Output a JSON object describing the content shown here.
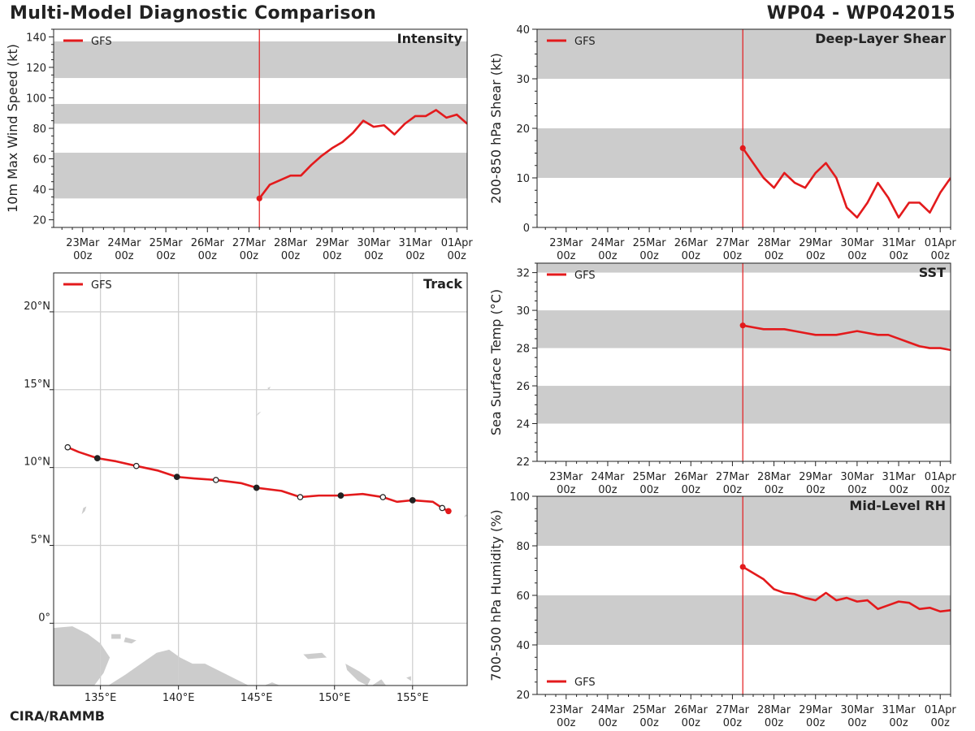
{
  "title": "Multi-Model Diagnostic Comparison",
  "storm_id": "WP04 - WP042015",
  "credit": "CIRA/RAMMB",
  "colors": {
    "series": "#e31a1c",
    "band": "#cccccc",
    "land": "#cccccc",
    "grid": "#d0d0d0",
    "frame": "#222222"
  },
  "chart_data": [
    {
      "id": "intensity",
      "type": "line",
      "title": "Intensity",
      "ylabel": "10m Max Wind Speed (kt)",
      "ylim": [
        15,
        145
      ],
      "yticks": [
        20,
        40,
        60,
        80,
        100,
        120,
        140
      ],
      "xlim": [
        -0.7,
        9.25
      ],
      "xticks": [
        {
          "value": 0,
          "label": "23Mar",
          "sub": "00z"
        },
        {
          "value": 1,
          "label": "24Mar",
          "sub": "00z"
        },
        {
          "value": 2,
          "label": "25Mar",
          "sub": "00z"
        },
        {
          "value": 3,
          "label": "26Mar",
          "sub": "00z"
        },
        {
          "value": 4,
          "label": "27Mar",
          "sub": "00z"
        },
        {
          "value": 5,
          "label": "28Mar",
          "sub": "00z"
        },
        {
          "value": 6,
          "label": "29Mar",
          "sub": "00z"
        },
        {
          "value": 7,
          "label": "30Mar",
          "sub": "00z"
        },
        {
          "value": 8,
          "label": "31Mar",
          "sub": "00z"
        },
        {
          "value": 9,
          "label": "01Apr",
          "sub": "00z"
        }
      ],
      "bands": [
        [
          34,
          64
        ],
        [
          83,
          96
        ],
        [
          113,
          137
        ]
      ],
      "init_x": 4.25,
      "legend": "GFS",
      "series": [
        {
          "name": "GFS",
          "x": [
            4.25,
            4.5,
            4.75,
            5.0,
            5.25,
            5.5,
            5.75,
            6.0,
            6.25,
            6.5,
            6.75,
            7.0,
            7.25,
            7.5,
            7.75,
            8.0,
            8.25,
            8.5,
            8.75,
            9.0,
            9.25
          ],
          "y": [
            34,
            43,
            46,
            49,
            49,
            56,
            62,
            67,
            71,
            77,
            85,
            81,
            82,
            76,
            83,
            88,
            88,
            92,
            87,
            89,
            83
          ]
        }
      ]
    },
    {
      "id": "shear",
      "type": "line",
      "title": "Deep-Layer Shear",
      "ylabel": "200-850 hPa Shear (kt)",
      "ylim": [
        0,
        40
      ],
      "yticks": [
        0,
        10,
        20,
        30,
        40
      ],
      "xlim": [
        -0.7,
        9.25
      ],
      "xticks": [
        {
          "value": 0,
          "label": "23Mar",
          "sub": "00z"
        },
        {
          "value": 1,
          "label": "24Mar",
          "sub": "00z"
        },
        {
          "value": 2,
          "label": "25Mar",
          "sub": "00z"
        },
        {
          "value": 3,
          "label": "26Mar",
          "sub": "00z"
        },
        {
          "value": 4,
          "label": "27Mar",
          "sub": "00z"
        },
        {
          "value": 5,
          "label": "28Mar",
          "sub": "00z"
        },
        {
          "value": 6,
          "label": "29Mar",
          "sub": "00z"
        },
        {
          "value": 7,
          "label": "30Mar",
          "sub": "00z"
        },
        {
          "value": 8,
          "label": "31Mar",
          "sub": "00z"
        },
        {
          "value": 9,
          "label": "01Apr",
          "sub": "00z"
        }
      ],
      "bands": [
        [
          10,
          20
        ],
        [
          30,
          40
        ]
      ],
      "init_x": 4.25,
      "legend": "GFS",
      "series": [
        {
          "name": "GFS",
          "x": [
            4.25,
            4.5,
            4.75,
            5.0,
            5.25,
            5.5,
            5.75,
            6.0,
            6.25,
            6.5,
            6.75,
            7.0,
            7.25,
            7.5,
            7.75,
            8.0,
            8.25,
            8.5,
            8.75,
            9.0,
            9.25
          ],
          "y": [
            16,
            13,
            10,
            8,
            11,
            9,
            8,
            11,
            13,
            10,
            4,
            2,
            5,
            9,
            6,
            2,
            5,
            5,
            3,
            7,
            10
          ]
        }
      ]
    },
    {
      "id": "sst",
      "type": "line",
      "title": "SST",
      "ylabel": "Sea Surface Temp (°C)",
      "ylim": [
        22,
        32.5
      ],
      "yticks": [
        22,
        24,
        26,
        28,
        30,
        32
      ],
      "xlim": [
        -0.7,
        9.25
      ],
      "xticks": [
        {
          "value": 0,
          "label": "23Mar",
          "sub": "00z"
        },
        {
          "value": 1,
          "label": "24Mar",
          "sub": "00z"
        },
        {
          "value": 2,
          "label": "25Mar",
          "sub": "00z"
        },
        {
          "value": 3,
          "label": "26Mar",
          "sub": "00z"
        },
        {
          "value": 4,
          "label": "27Mar",
          "sub": "00z"
        },
        {
          "value": 5,
          "label": "28Mar",
          "sub": "00z"
        },
        {
          "value": 6,
          "label": "29Mar",
          "sub": "00z"
        },
        {
          "value": 7,
          "label": "30Mar",
          "sub": "00z"
        },
        {
          "value": 8,
          "label": "31Mar",
          "sub": "00z"
        },
        {
          "value": 9,
          "label": "01Apr",
          "sub": "00z"
        }
      ],
      "bands": [
        [
          24,
          26
        ],
        [
          28,
          30
        ],
        [
          32,
          32.5
        ]
      ],
      "init_x": 4.25,
      "legend": "GFS",
      "series": [
        {
          "name": "GFS",
          "x": [
            4.25,
            4.5,
            4.75,
            5.0,
            5.25,
            5.5,
            5.75,
            6.0,
            6.25,
            6.5,
            6.75,
            7.0,
            7.25,
            7.5,
            7.75,
            8.0,
            8.25,
            8.5,
            8.75,
            9.0,
            9.25
          ],
          "y": [
            29.2,
            29.1,
            29.0,
            29.0,
            29.0,
            28.9,
            28.8,
            28.7,
            28.7,
            28.7,
            28.8,
            28.9,
            28.8,
            28.7,
            28.7,
            28.5,
            28.3,
            28.1,
            28.0,
            28.0,
            27.9
          ]
        }
      ]
    },
    {
      "id": "rh",
      "type": "line",
      "title": "Mid-Level RH",
      "ylabel": "700-500 hPa Humidity (%)",
      "ylim": [
        20,
        100
      ],
      "yticks": [
        20,
        40,
        60,
        80,
        100
      ],
      "xlim": [
        -0.7,
        9.25
      ],
      "xticks": [
        {
          "value": 0,
          "label": "23Mar",
          "sub": "00z"
        },
        {
          "value": 1,
          "label": "24Mar",
          "sub": "00z"
        },
        {
          "value": 2,
          "label": "25Mar",
          "sub": "00z"
        },
        {
          "value": 3,
          "label": "26Mar",
          "sub": "00z"
        },
        {
          "value": 4,
          "label": "27Mar",
          "sub": "00z"
        },
        {
          "value": 5,
          "label": "28Mar",
          "sub": "00z"
        },
        {
          "value": 6,
          "label": "29Mar",
          "sub": "00z"
        },
        {
          "value": 7,
          "label": "30Mar",
          "sub": "00z"
        },
        {
          "value": 8,
          "label": "31Mar",
          "sub": "00z"
        },
        {
          "value": 9,
          "label": "01Apr",
          "sub": "00z"
        }
      ],
      "bands": [
        [
          40,
          60
        ],
        [
          80,
          100
        ]
      ],
      "init_x": 4.25,
      "legend": "GFS",
      "series": [
        {
          "name": "GFS",
          "x": [
            4.25,
            4.5,
            4.75,
            5.0,
            5.25,
            5.5,
            5.75,
            6.0,
            6.25,
            6.5,
            6.75,
            7.0,
            7.25,
            7.5,
            7.75,
            8.0,
            8.25,
            8.5,
            8.75,
            9.0,
            9.25
          ],
          "y": [
            71.5,
            69,
            66.5,
            62.5,
            61,
            60.5,
            59,
            58,
            61,
            58,
            59,
            57.5,
            58,
            54.5,
            56,
            57.5,
            57,
            54.5,
            55,
            53.5,
            54
          ]
        }
      ]
    },
    {
      "id": "track",
      "type": "scatter",
      "title": "Track",
      "legend": "GFS",
      "xlim": [
        132,
        158.5
      ],
      "ylim": [
        -4,
        22.5
      ],
      "xticks": [
        {
          "value": 135,
          "label": "135°E"
        },
        {
          "value": 140,
          "label": "140°E"
        },
        {
          "value": 145,
          "label": "145°E"
        },
        {
          "value": 150,
          "label": "150°E"
        },
        {
          "value": 155,
          "label": "155°E"
        }
      ],
      "yticks": [
        {
          "value": 0,
          "label": "0°"
        },
        {
          "value": 5,
          "label": "5°N"
        },
        {
          "value": 10,
          "label": "10°N"
        },
        {
          "value": 15,
          "label": "15°N"
        },
        {
          "value": 20,
          "label": "20°N"
        }
      ],
      "series": [
        {
          "name": "GFS",
          "lon": [
            157.3,
            156.9,
            156.3,
            155.0,
            154.0,
            153.1,
            151.8,
            150.4,
            149.0,
            147.8,
            146.6,
            145.0,
            144.0,
            142.4,
            141.0,
            139.9,
            138.7,
            137.3,
            136.0,
            134.8,
            133.6,
            132.9
          ],
          "lat": [
            7.2,
            7.4,
            7.8,
            7.9,
            7.8,
            8.1,
            8.3,
            8.2,
            8.2,
            8.1,
            8.5,
            8.7,
            9.0,
            9.2,
            9.3,
            9.4,
            9.8,
            10.1,
            10.4,
            10.6,
            11.0,
            11.3
          ],
          "marker": [
            "init",
            "open",
            "none",
            "filled",
            "none",
            "open",
            "none",
            "filled",
            "none",
            "open",
            "none",
            "filled",
            "none",
            "open",
            "none",
            "filled",
            "none",
            "open",
            "none",
            "filled",
            "none",
            "open"
          ]
        }
      ]
    }
  ]
}
